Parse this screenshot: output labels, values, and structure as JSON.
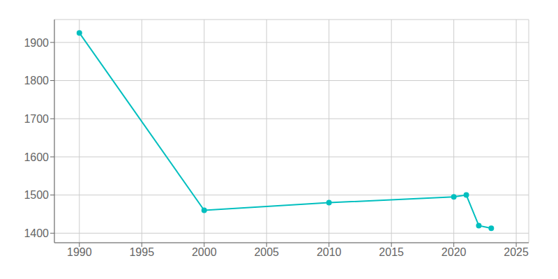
{
  "chart_data": {
    "type": "line",
    "x": [
      1990,
      2000,
      2010,
      2020,
      2021,
      2022,
      2023
    ],
    "values": [
      1925,
      1460,
      1480,
      1495,
      1500,
      1420,
      1413
    ],
    "color": "#00BFBF",
    "marker": "circle",
    "xlim": [
      1988,
      2026
    ],
    "ylim": [
      1375,
      1960
    ],
    "xticks": [
      1990,
      1995,
      2000,
      2005,
      2010,
      2015,
      2020,
      2025
    ],
    "yticks": [
      1400,
      1500,
      1600,
      1700,
      1800,
      1900
    ],
    "grid": true
  }
}
